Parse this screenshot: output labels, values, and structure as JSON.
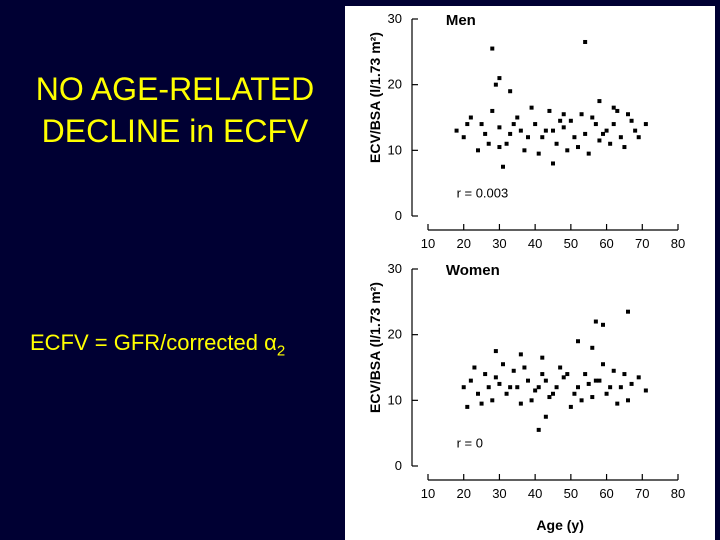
{
  "slide": {
    "title_line1": "NO AGE-RELATED",
    "title_line2": "DECLINE in ECFV",
    "formula_text": "ECFV = GFR/corrected α",
    "formula_subscript": "2",
    "text_color": "#ffff00",
    "background_color": "#000033"
  },
  "chart_data": [
    {
      "type": "scatter",
      "panel_label": "Men",
      "ylabel": "ECV/BSA (l/1.73 m²)",
      "xlabel": "",
      "xlim": [
        10,
        80
      ],
      "ylim": [
        0,
        30
      ],
      "x_ticks": [
        "10",
        "20",
        "30",
        "40",
        "50",
        "60",
        "70",
        "80"
      ],
      "y_ticks": [
        "0",
        "10",
        "20",
        "30"
      ],
      "annotation": "r = 0.003",
      "series": [
        {
          "points": [
            [
              28,
              25.5
            ],
            [
              54,
              26.5
            ],
            [
              30,
              21
            ],
            [
              33,
              19
            ],
            [
              29,
              20
            ],
            [
              58,
              17.5
            ],
            [
              62,
              16.5
            ],
            [
              48,
              15.5
            ],
            [
              45,
              8
            ],
            [
              31,
              7.5
            ],
            [
              18,
              13
            ],
            [
              20,
              12
            ],
            [
              22,
              15
            ],
            [
              25,
              14
            ],
            [
              27,
              11
            ],
            [
              30,
              13.5
            ],
            [
              33,
              12.5
            ],
            [
              35,
              15
            ],
            [
              37,
              10
            ],
            [
              40,
              14
            ],
            [
              42,
              12
            ],
            [
              44,
              16
            ],
            [
              46,
              11
            ],
            [
              48,
              13.5
            ],
            [
              50,
              14.5
            ],
            [
              52,
              10.5
            ],
            [
              54,
              12.5
            ],
            [
              56,
              15
            ],
            [
              58,
              11.5
            ],
            [
              60,
              13
            ],
            [
              62,
              14
            ],
            [
              64,
              12
            ],
            [
              66,
              15.5
            ],
            [
              68,
              13
            ],
            [
              71,
              14
            ],
            [
              24,
              10
            ],
            [
              28,
              16
            ],
            [
              32,
              11
            ],
            [
              36,
              13
            ],
            [
              39,
              16.5
            ],
            [
              41,
              9.5
            ],
            [
              43,
              13
            ],
            [
              47,
              14.5
            ],
            [
              51,
              12
            ],
            [
              55,
              9.5
            ],
            [
              57,
              14
            ],
            [
              61,
              11
            ],
            [
              63,
              16
            ],
            [
              65,
              10.5
            ],
            [
              69,
              12
            ],
            [
              21,
              14
            ],
            [
              26,
              12.5
            ],
            [
              34,
              14
            ],
            [
              38,
              12
            ],
            [
              49,
              10
            ],
            [
              53,
              15.5
            ],
            [
              59,
              12.5
            ],
            [
              67,
              14.5
            ],
            [
              45,
              13
            ],
            [
              30,
              10.5
            ]
          ]
        }
      ]
    },
    {
      "type": "scatter",
      "panel_label": "Women",
      "ylabel": "ECV/BSA (l/1.73 m²)",
      "xlabel": "Age (y)",
      "xlim": [
        10,
        80
      ],
      "ylim": [
        0,
        30
      ],
      "x_ticks": [
        "10",
        "20",
        "30",
        "40",
        "50",
        "60",
        "70",
        "80"
      ],
      "y_ticks": [
        "0",
        "10",
        "20",
        "30"
      ],
      "annotation": "r = 0",
      "series": [
        {
          "points": [
            [
              66,
              23.5
            ],
            [
              57,
              22
            ],
            [
              59,
              21.5
            ],
            [
              52,
              19
            ],
            [
              56,
              18
            ],
            [
              29,
              17.5
            ],
            [
              36,
              17
            ],
            [
              42,
              16.5
            ],
            [
              43,
              7.5
            ],
            [
              41,
              5.5
            ],
            [
              20,
              12
            ],
            [
              21,
              9
            ],
            [
              22,
              13
            ],
            [
              24,
              11
            ],
            [
              26,
              14
            ],
            [
              28,
              10
            ],
            [
              30,
              12.5
            ],
            [
              32,
              11
            ],
            [
              34,
              14.5
            ],
            [
              36,
              9.5
            ],
            [
              38,
              13
            ],
            [
              40,
              11.5
            ],
            [
              42,
              14
            ],
            [
              44,
              10.5
            ],
            [
              46,
              12
            ],
            [
              48,
              13.5
            ],
            [
              50,
              9
            ],
            [
              52,
              12
            ],
            [
              54,
              14
            ],
            [
              56,
              10.5
            ],
            [
              58,
              13
            ],
            [
              60,
              11
            ],
            [
              62,
              14.5
            ],
            [
              64,
              12
            ],
            [
              66,
              10
            ],
            [
              69,
              13.5
            ],
            [
              23,
              15
            ],
            [
              27,
              12
            ],
            [
              31,
              15.5
            ],
            [
              35,
              12
            ],
            [
              39,
              10
            ],
            [
              43,
              13
            ],
            [
              47,
              15
            ],
            [
              51,
              11
            ],
            [
              55,
              12.5
            ],
            [
              59,
              15.5
            ],
            [
              63,
              9.5
            ],
            [
              67,
              12.5
            ],
            [
              25,
              9.5
            ],
            [
              33,
              12
            ],
            [
              37,
              15
            ],
            [
              45,
              11
            ],
            [
              49,
              14
            ],
            [
              53,
              10
            ],
            [
              57,
              13
            ],
            [
              61,
              12
            ],
            [
              65,
              14
            ],
            [
              29,
              13.5
            ],
            [
              41,
              12
            ],
            [
              71,
              11.5
            ]
          ]
        }
      ]
    }
  ]
}
